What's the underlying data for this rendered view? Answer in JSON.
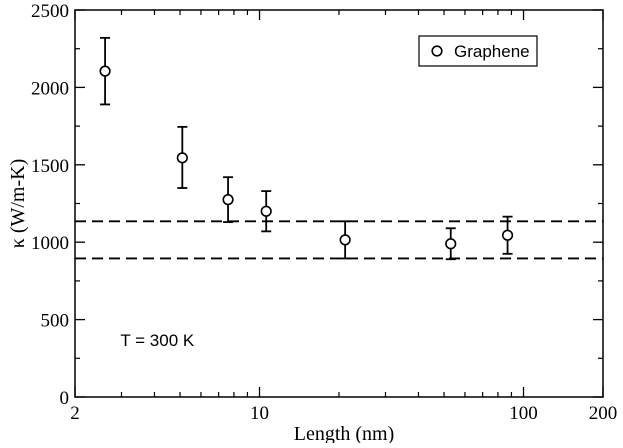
{
  "chart_data": {
    "type": "scatter",
    "title": "",
    "xlabel": "Length (nm)",
    "ylabel": "κ (W/m-K)",
    "x_scale": "log",
    "xlim": [
      2,
      200
    ],
    "ylim": [
      0,
      2500
    ],
    "x_ticks": [
      {
        "value": 2,
        "label": "2"
      },
      {
        "value": 10,
        "label": "10"
      },
      {
        "value": 100,
        "label": "100"
      },
      {
        "value": 200,
        "label": "200"
      }
    ],
    "y_ticks": [
      {
        "value": 0,
        "label": "0"
      },
      {
        "value": 500,
        "label": "500"
      },
      {
        "value": 1000,
        "label": "1000"
      },
      {
        "value": 1500,
        "label": "1500"
      },
      {
        "value": 2000,
        "label": "2000"
      },
      {
        "value": 2500,
        "label": "2500"
      }
    ],
    "grid": false,
    "legend": {
      "position": "top-right",
      "framed": true
    },
    "series": [
      {
        "name": "Graphene",
        "marker": "open-circle",
        "color": "#000000",
        "points": [
          {
            "x": 2.6,
            "y": 2105,
            "err_low": 1890,
            "err_high": 2320
          },
          {
            "x": 5.1,
            "y": 1545,
            "err_low": 1350,
            "err_high": 1745
          },
          {
            "x": 7.6,
            "y": 1275,
            "err_low": 1130,
            "err_high": 1420
          },
          {
            "x": 10.6,
            "y": 1200,
            "err_low": 1070,
            "err_high": 1330
          },
          {
            "x": 21.1,
            "y": 1015,
            "err_low": 895,
            "err_high": 1135
          },
          {
            "x": 53.0,
            "y": 990,
            "err_low": 890,
            "err_high": 1090
          },
          {
            "x": 87.0,
            "y": 1045,
            "err_low": 925,
            "err_high": 1165
          }
        ]
      }
    ],
    "reference_lines": [
      {
        "orientation": "horizontal",
        "y": 1135,
        "style": "dashed"
      },
      {
        "orientation": "horizontal",
        "y": 895,
        "style": "dashed"
      }
    ],
    "annotations": [
      {
        "text": "T = 300 K",
        "x": 4.1,
        "y": 330
      }
    ]
  }
}
